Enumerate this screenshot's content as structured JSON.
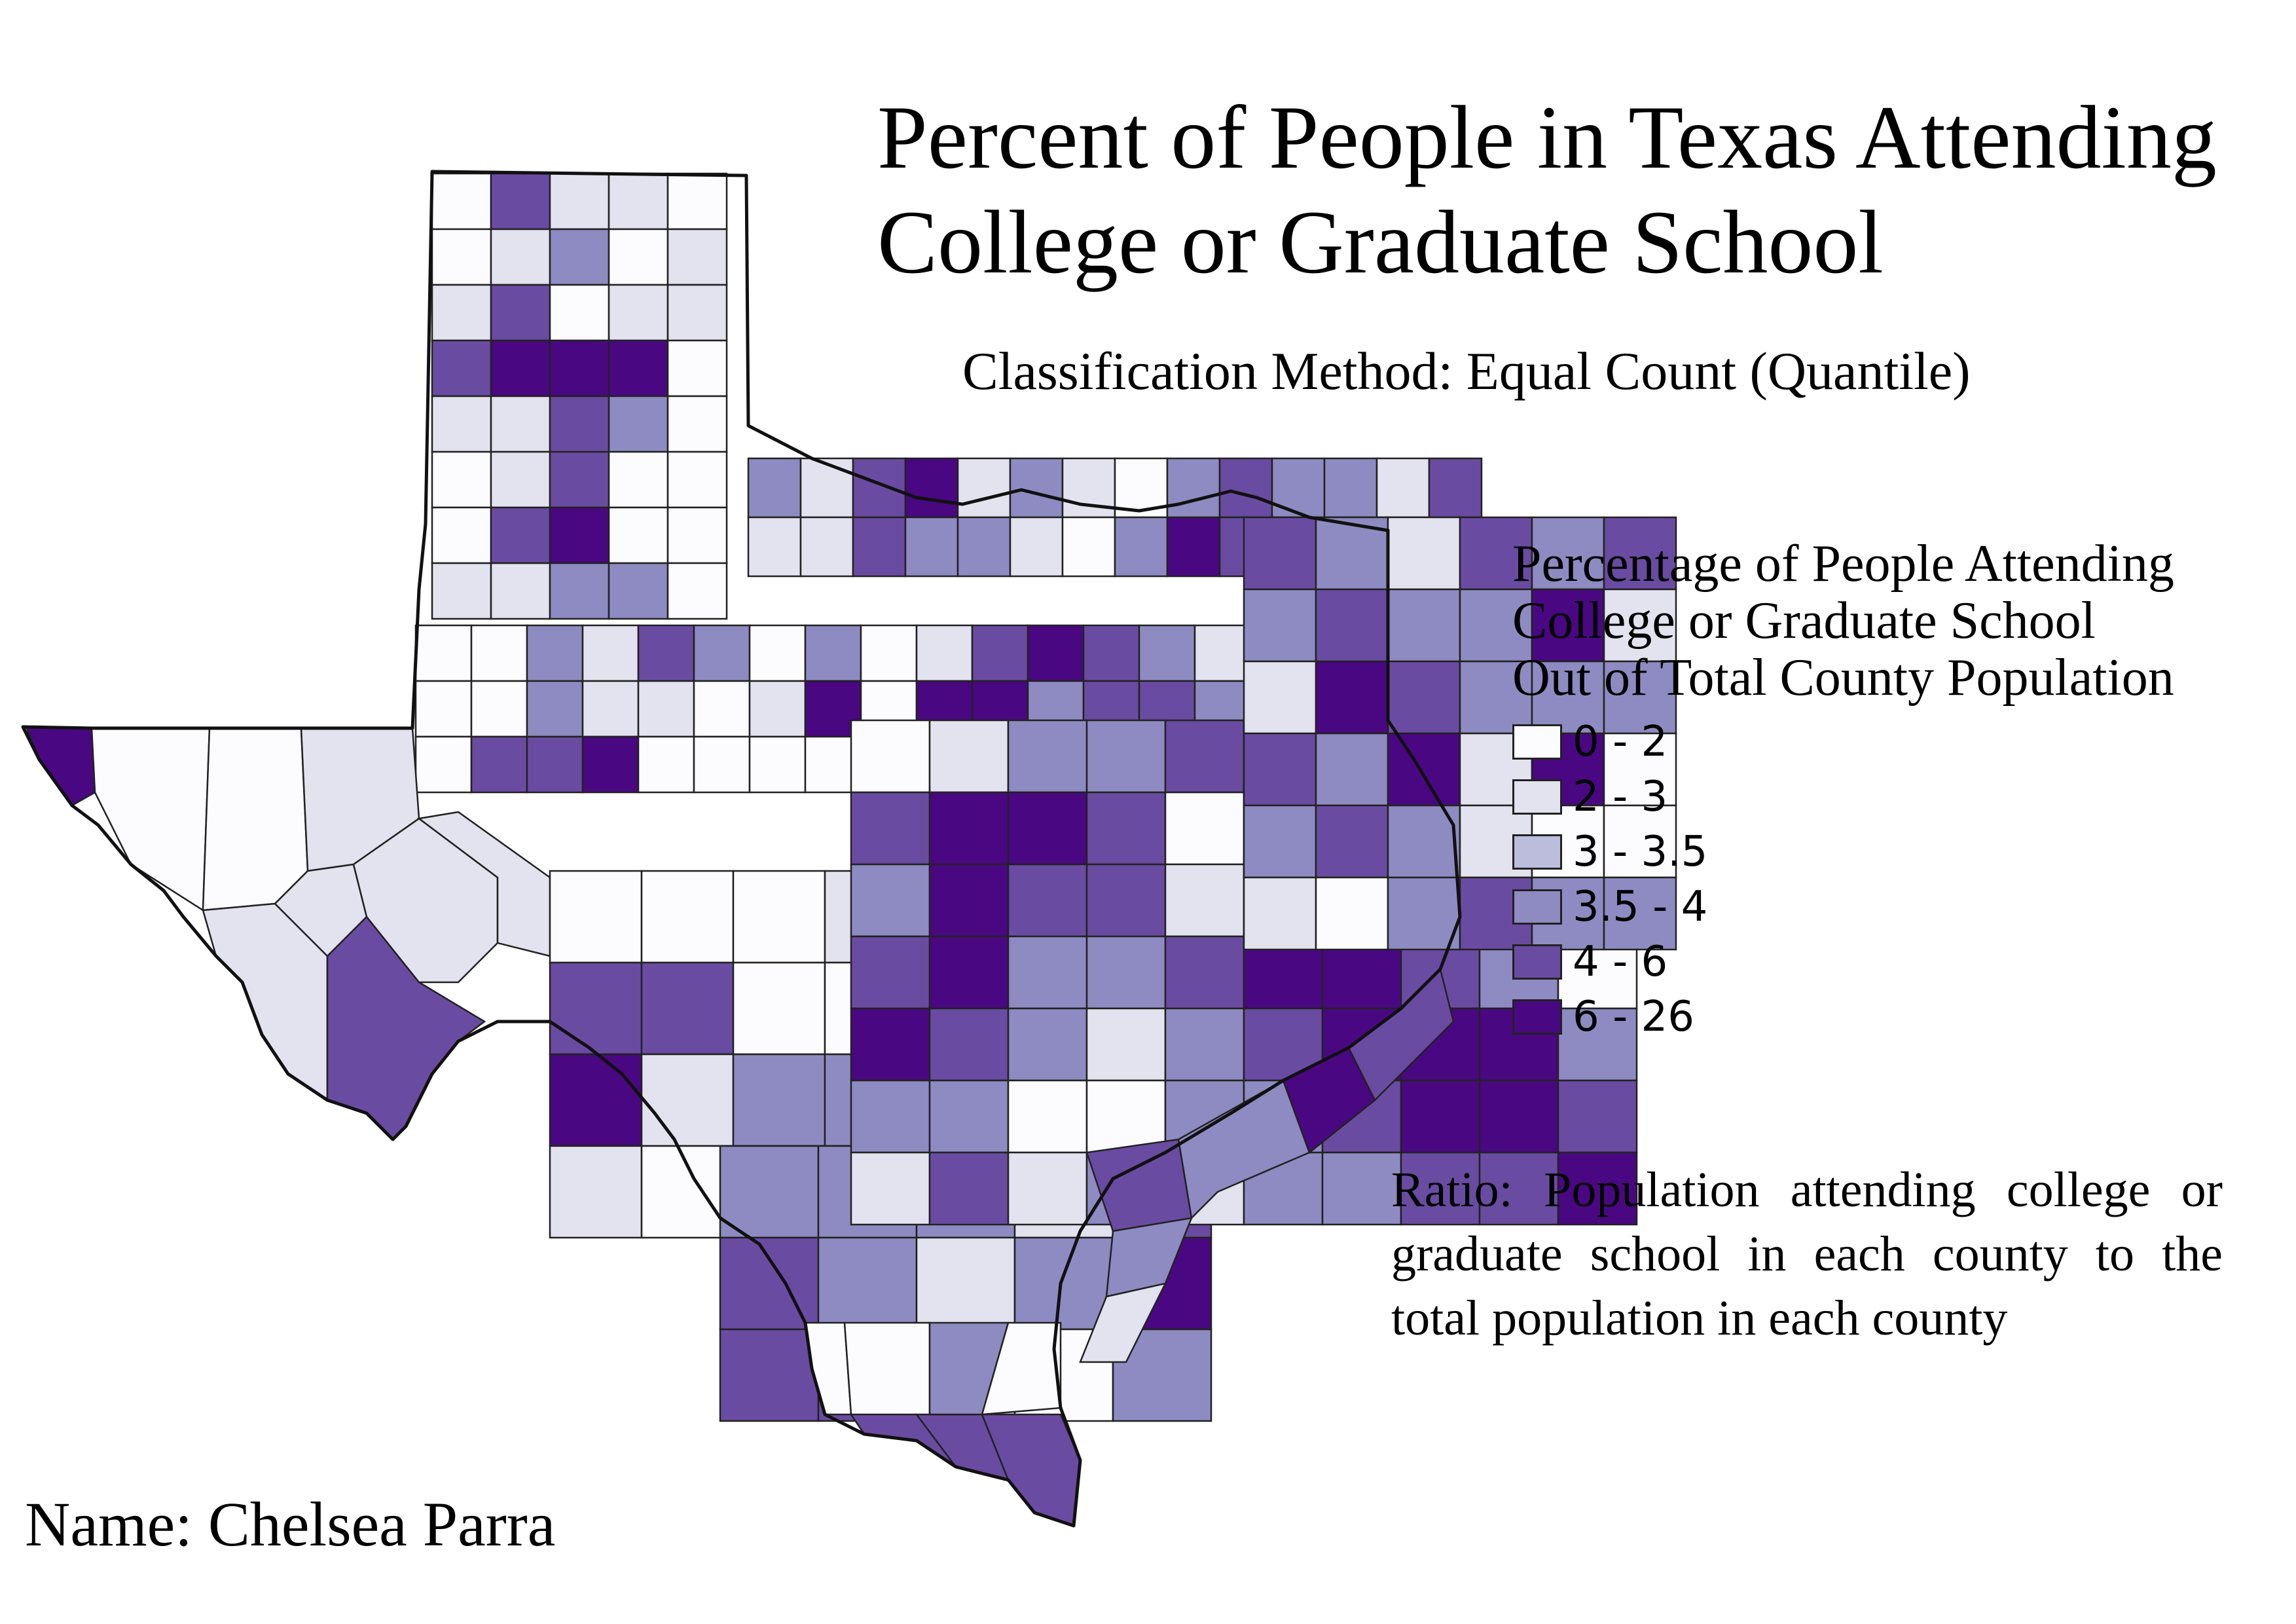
{
  "map": {
    "title_line1": "Percent of People in Texas Attending",
    "title_line2": "College or Graduate School",
    "classification": "Classification Method: Equal Count (Quantile)",
    "legend": {
      "title_line1": "Percentage of People Attending",
      "title_line2": "College or Graduate School",
      "title_line3": "Out of Total County Population",
      "classes": [
        {
          "label": "0 - 2",
          "color": "#fcfbfd"
        },
        {
          "label": "2 - 3",
          "color": "#e3e2ef"
        },
        {
          "label": "3 - 3.5",
          "color": "#bcbddc"
        },
        {
          "label": "3.5 - 4",
          "color": "#8e8bc2"
        },
        {
          "label": "4 - 6",
          "color": "#6a4ba2"
        },
        {
          "label": "6 - 26",
          "color": "#4a0782"
        }
      ]
    },
    "ratio_note": "Ratio: Population attending college or graduate school in each county to the total population in each county",
    "author": "Name: Chelsea Parra"
  }
}
